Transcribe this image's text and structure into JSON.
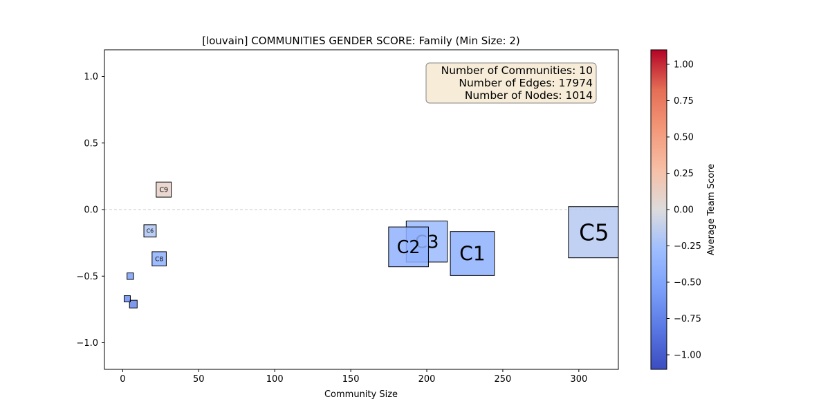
{
  "chart_data": {
    "type": "scatter",
    "title": "[louvain] COMMUNITIES GENDER SCORE: Family (Min Size: 2)",
    "xlabel": "Community Size",
    "ylabel": "",
    "xlim": [
      -12,
      326
    ],
    "ylim": [
      -1.2,
      1.2
    ],
    "xticks": [
      0,
      50,
      100,
      150,
      200,
      250,
      300
    ],
    "xtick_labels": [
      "0",
      "50",
      "100",
      "150",
      "200",
      "250",
      "300"
    ],
    "yticks": [
      -1.0,
      -0.5,
      0.0,
      0.5,
      1.0
    ],
    "ytick_labels": [
      "−1.0",
      "−0.5",
      "0.0",
      "0.5",
      "1.0"
    ],
    "grid": false,
    "reference_line": {
      "y": 0.0,
      "style": "dashed"
    },
    "marker": "square, size proportional to community size",
    "points": [
      {
        "label": "C5",
        "x": 310,
        "y": -0.17,
        "score": -0.17
      },
      {
        "label": "C1",
        "x": 230,
        "y": -0.33,
        "score": -0.4
      },
      {
        "label": "C3",
        "x": 200,
        "y": -0.24,
        "score": -0.3
      },
      {
        "label": "C2",
        "x": 188,
        "y": -0.28,
        "score": -0.38
      },
      {
        "label": "C9",
        "x": 27,
        "y": 0.15,
        "score": 0.1
      },
      {
        "label": "C6",
        "x": 18,
        "y": -0.16,
        "score": -0.2
      },
      {
        "label": "C8",
        "x": 24,
        "y": -0.37,
        "score": -0.4
      },
      {
        "label": "",
        "x": 5,
        "y": -0.5,
        "score": -0.55
      },
      {
        "label": "",
        "x": 3,
        "y": -0.67,
        "score": -0.65
      },
      {
        "label": "",
        "x": 7,
        "y": -0.71,
        "score": -0.72
      }
    ],
    "stats_box": {
      "lines": [
        "Number of Communities: 10",
        "Number of Edges: 17974",
        "Number of Nodes: 1014"
      ],
      "placement": "top-right"
    },
    "colorbar": {
      "label": "Average Team Score",
      "range": [
        -1.1,
        1.1
      ],
      "colormap": "coolwarm",
      "ticks": [
        -1.0,
        -0.75,
        -0.5,
        -0.25,
        0.0,
        0.25,
        0.5,
        0.75,
        1.0
      ],
      "tick_labels": [
        "−1.00",
        "−0.75",
        "−0.50",
        "−0.25",
        "0.00",
        "0.25",
        "0.50",
        "0.75",
        "1.00"
      ]
    }
  }
}
